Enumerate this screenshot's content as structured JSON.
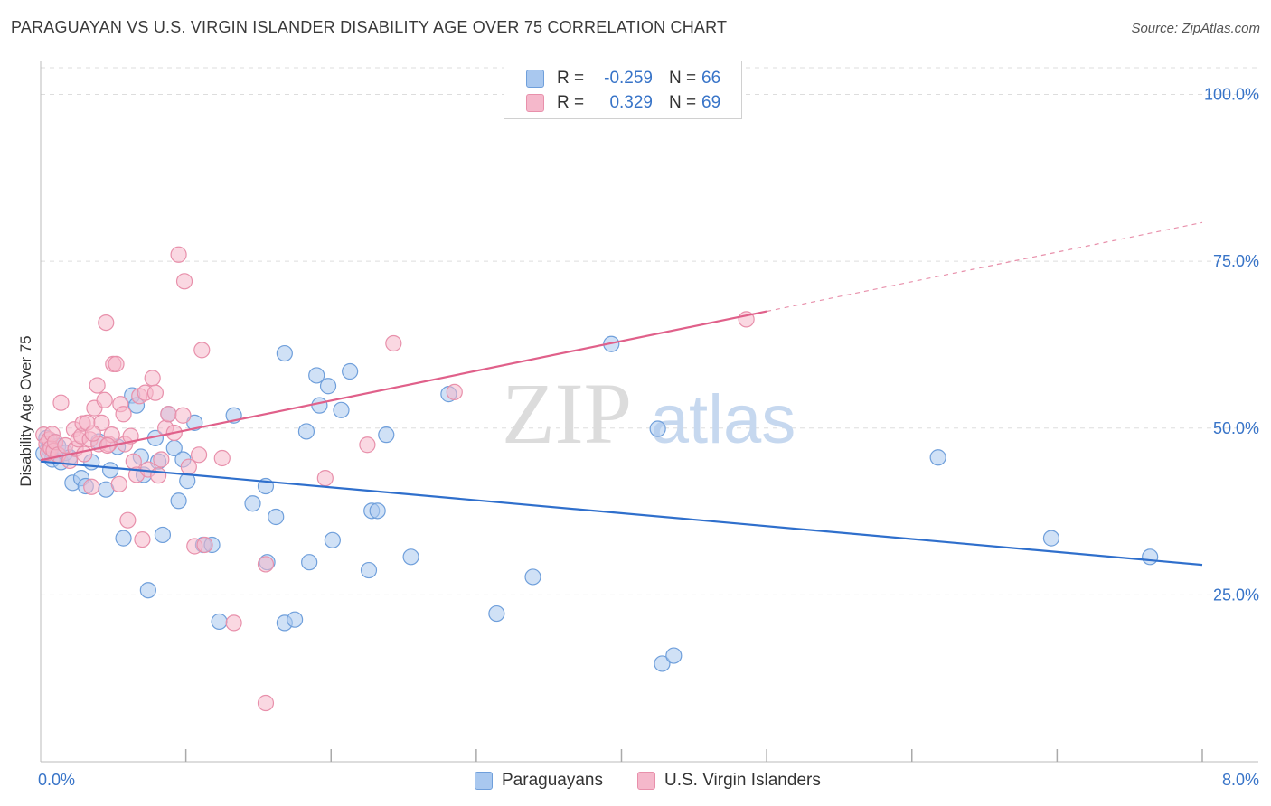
{
  "title": "PARAGUAYAN VS U.S. VIRGIN ISLANDER DISABILITY AGE OVER 75 CORRELATION CHART",
  "source": "Source: ZipAtlas.com",
  "watermark": {
    "zip": "ZIP",
    "atlas": "atlas"
  },
  "legend": {
    "rows": [
      {
        "r_label": "R =",
        "r_value": "-0.259",
        "n_label": "N =",
        "n_value": "66"
      },
      {
        "r_label": "R =",
        "r_value": "0.329",
        "n_label": "N =",
        "n_value": "69"
      }
    ]
  },
  "bottom_legend": [
    "Paraguayans",
    "U.S. Virgin Islanders"
  ],
  "colors": {
    "blue_fill": "#a9c8ef",
    "blue_stroke": "#6f9fdb",
    "blue_line": "#2f6fcc",
    "pink_fill": "#f5b8cb",
    "pink_stroke": "#e890ab",
    "pink_line": "#e0608a",
    "axis_text": "#3874c8",
    "grid": "#dddddd"
  },
  "chart_data": {
    "type": "scatter",
    "title": "PARAGUAYAN VS U.S. VIRGIN ISLANDER DISABILITY AGE OVER 75 CORRELATION CHART",
    "xlabel": "",
    "ylabel": "Disability Age Over 75",
    "xlim": [
      0,
      8
    ],
    "ylim": [
      0,
      104
    ],
    "x_tick_labels": [
      "0.0%",
      "8.0%"
    ],
    "y_ticks": [
      25,
      50,
      75,
      100
    ],
    "y_tick_labels": [
      "25.0%",
      "50.0%",
      "75.0%",
      "100.0%"
    ],
    "grid": true,
    "legend_position": "top-center",
    "series": [
      {
        "name": "Paraguayans",
        "color": "blue",
        "r": -0.259,
        "n": 66,
        "trend": {
          "x0": 0.0,
          "y0": 45.0,
          "x1": 8.0,
          "y1": 29.5
        },
        "points": [
          [
            0.04,
            48.5
          ],
          [
            0.06,
            46.8
          ],
          [
            0.08,
            45.3
          ],
          [
            0.1,
            47.9
          ],
          [
            0.12,
            47.3
          ],
          [
            0.14,
            44.9
          ],
          [
            0.17,
            46.3
          ],
          [
            0.2,
            45.6
          ],
          [
            0.22,
            41.8
          ],
          [
            0.28,
            42.5
          ],
          [
            0.31,
            41.3
          ],
          [
            0.35,
            44.9
          ],
          [
            0.4,
            48.0
          ],
          [
            0.45,
            40.8
          ],
          [
            0.48,
            43.7
          ],
          [
            0.53,
            47.2
          ],
          [
            0.57,
            33.5
          ],
          [
            0.63,
            54.9
          ],
          [
            0.66,
            53.4
          ],
          [
            0.69,
            45.7
          ],
          [
            0.71,
            43.0
          ],
          [
            0.74,
            25.7
          ],
          [
            0.79,
            48.5
          ],
          [
            0.81,
            45.0
          ],
          [
            0.84,
            34.0
          ],
          [
            0.88,
            52.1
          ],
          [
            0.92,
            47.0
          ],
          [
            0.95,
            39.1
          ],
          [
            0.98,
            45.3
          ],
          [
            1.01,
            42.1
          ],
          [
            1.06,
            50.8
          ],
          [
            1.12,
            32.5
          ],
          [
            1.18,
            32.5
          ],
          [
            1.23,
            21.0
          ],
          [
            1.33,
            51.9
          ],
          [
            1.46,
            38.7
          ],
          [
            1.55,
            41.3
          ],
          [
            1.56,
            29.9
          ],
          [
            1.62,
            36.7
          ],
          [
            1.68,
            61.2
          ],
          [
            1.68,
            20.8
          ],
          [
            1.75,
            21.3
          ],
          [
            1.85,
            29.9
          ],
          [
            1.83,
            49.5
          ],
          [
            1.9,
            57.9
          ],
          [
            1.92,
            53.4
          ],
          [
            1.98,
            56.3
          ],
          [
            2.01,
            33.2
          ],
          [
            2.07,
            52.7
          ],
          [
            2.13,
            58.5
          ],
          [
            2.26,
            28.7
          ],
          [
            2.28,
            37.6
          ],
          [
            2.32,
            37.6
          ],
          [
            2.38,
            49.0
          ],
          [
            2.55,
            30.7
          ],
          [
            2.81,
            55.1
          ],
          [
            3.14,
            22.2
          ],
          [
            3.39,
            27.7
          ],
          [
            3.93,
            62.6
          ],
          [
            4.25,
            49.9
          ],
          [
            4.28,
            14.7
          ],
          [
            4.36,
            15.9
          ],
          [
            6.18,
            45.6
          ],
          [
            6.96,
            33.5
          ],
          [
            7.64,
            30.7
          ],
          [
            0.02,
            46.2
          ]
        ]
      },
      {
        "name": "U.S. Virgin Islanders",
        "color": "pink",
        "r": 0.329,
        "n": 69,
        "trend": {
          "x0": 0.0,
          "y0": 45.2,
          "x1": 5.0,
          "y1": 67.5
        },
        "trend_extension": {
          "x0": 5.0,
          "y0": 67.5,
          "x1": 8.0,
          "y1": 80.8
        },
        "points": [
          [
            0.02,
            49.0
          ],
          [
            0.04,
            47.6
          ],
          [
            0.05,
            46.3
          ],
          [
            0.06,
            48.3
          ],
          [
            0.07,
            47.0
          ],
          [
            0.08,
            49.1
          ],
          [
            0.09,
            46.6
          ],
          [
            0.1,
            47.9
          ],
          [
            0.12,
            46.0
          ],
          [
            0.14,
            53.8
          ],
          [
            0.17,
            47.4
          ],
          [
            0.2,
            45.1
          ],
          [
            0.23,
            49.8
          ],
          [
            0.24,
            46.9
          ],
          [
            0.26,
            48.3
          ],
          [
            0.28,
            48.8
          ],
          [
            0.29,
            50.7
          ],
          [
            0.3,
            46.1
          ],
          [
            0.32,
            50.8
          ],
          [
            0.34,
            48.3
          ],
          [
            0.35,
            41.2
          ],
          [
            0.37,
            53.0
          ],
          [
            0.39,
            56.4
          ],
          [
            0.4,
            47.6
          ],
          [
            0.42,
            50.8
          ],
          [
            0.44,
            54.2
          ],
          [
            0.45,
            65.8
          ],
          [
            0.47,
            47.6
          ],
          [
            0.49,
            49.0
          ],
          [
            0.5,
            59.6
          ],
          [
            0.52,
            59.6
          ],
          [
            0.54,
            41.6
          ],
          [
            0.55,
            53.6
          ],
          [
            0.57,
            52.1
          ],
          [
            0.58,
            47.6
          ],
          [
            0.6,
            36.2
          ],
          [
            0.62,
            48.8
          ],
          [
            0.64,
            45.0
          ],
          [
            0.66,
            43.0
          ],
          [
            0.68,
            54.8
          ],
          [
            0.7,
            33.3
          ],
          [
            0.72,
            55.3
          ],
          [
            0.74,
            43.8
          ],
          [
            0.77,
            57.5
          ],
          [
            0.79,
            55.3
          ],
          [
            0.81,
            42.9
          ],
          [
            0.83,
            45.3
          ],
          [
            0.86,
            50.0
          ],
          [
            0.88,
            52.1
          ],
          [
            0.92,
            49.3
          ],
          [
            0.95,
            76.0
          ],
          [
            0.98,
            51.9
          ],
          [
            0.99,
            72.0
          ],
          [
            1.02,
            44.2
          ],
          [
            1.06,
            32.3
          ],
          [
            1.09,
            46.0
          ],
          [
            1.11,
            61.7
          ],
          [
            1.13,
            32.5
          ],
          [
            1.25,
            45.5
          ],
          [
            1.33,
            20.8
          ],
          [
            1.55,
            29.6
          ],
          [
            1.55,
            8.8
          ],
          [
            1.96,
            42.5
          ],
          [
            2.25,
            47.5
          ],
          [
            2.43,
            62.7
          ],
          [
            2.85,
            55.4
          ],
          [
            4.86,
            66.3
          ],
          [
            0.46,
            47.4
          ],
          [
            0.36,
            49.2
          ]
        ]
      }
    ]
  }
}
